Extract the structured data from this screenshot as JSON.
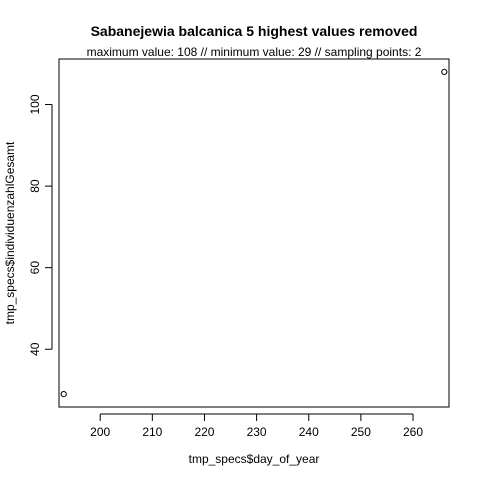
{
  "chart_data": {
    "type": "scatter",
    "title": "Sabanejewia balcanica  5 highest values removed",
    "subtitle": "maximum value: 108  //  minimum value: 29  // sampling points: 2",
    "xlabel": "tmp_specs$day_of_year",
    "ylabel": "tmp_specs$individuenzahlGesamt",
    "xlim": [
      192.1,
      266.9
    ],
    "ylim": [
      25.84,
      111.16
    ],
    "xticks": [
      200,
      210,
      220,
      230,
      240,
      250,
      260
    ],
    "yticks": [
      40,
      60,
      80,
      100
    ],
    "points": [
      {
        "x": 193,
        "y": 29
      },
      {
        "x": 266,
        "y": 108
      }
    ],
    "marker": "open-circle",
    "grid": false,
    "legend": "none",
    "colors": {
      "points": "#000000",
      "axes": "#000000",
      "background": "#ffffff"
    }
  }
}
